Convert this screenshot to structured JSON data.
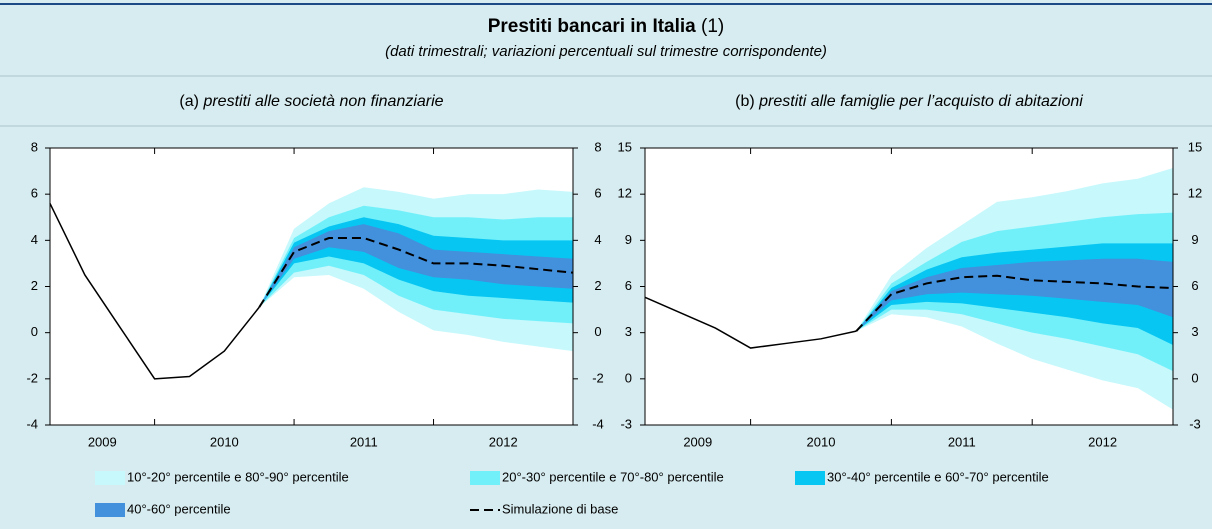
{
  "header": {
    "title": "Prestiti bancari in Italia",
    "title_note": "(1)",
    "subtitle": "(dati trimestrali; variazioni percentuali sul trimestre corrispondente)"
  },
  "legend": [
    {
      "name": "10°-20° percentile e 80°-90° percentile",
      "color": "#c6f8fc"
    },
    {
      "name": "20°-30° percentile e 70°-80° percentile",
      "color": "#72f0fa"
    },
    {
      "name": "30°-40° percentile e 60°-70° percentile",
      "color": "#08c6f2"
    },
    {
      "name": "40°-60° percentile",
      "color": "#4390dc"
    },
    {
      "name": "Simulazione di base",
      "color": "#000000",
      "dash": true
    }
  ],
  "chart_data": [
    {
      "type": "fan",
      "label": "(a)",
      "title": "prestiti alle società non finanziarie",
      "categories": [
        "2009",
        "2010",
        "2011",
        "2012"
      ],
      "x": [
        0,
        1,
        2,
        3,
        4,
        5,
        6,
        7,
        8,
        9,
        10,
        11,
        12,
        13,
        14,
        15
      ],
      "xlim": [
        0,
        15
      ],
      "xticks": [
        3,
        7,
        11
      ],
      "ylim": [
        -4,
        8
      ],
      "yticks": [
        -4,
        -2,
        0,
        2,
        4,
        6,
        8
      ],
      "history": [
        5.6,
        2.5,
        0.25,
        -2.0,
        -1.9,
        -0.8,
        1.1,
        null,
        null,
        null,
        null,
        null,
        null,
        null,
        null,
        null
      ],
      "baseline": [
        null,
        null,
        null,
        null,
        null,
        null,
        1.1,
        3.5,
        4.1,
        4.1,
        3.6,
        3.0,
        3.0,
        2.9,
        2.75,
        2.6
      ],
      "bands": [
        {
          "lower": [
            null,
            null,
            null,
            null,
            null,
            null,
            1.1,
            2.4,
            2.5,
            1.9,
            0.9,
            0.1,
            -0.1,
            -0.4,
            -0.6,
            -0.8
          ],
          "upper": [
            null,
            null,
            null,
            null,
            null,
            null,
            1.1,
            4.5,
            5.6,
            6.3,
            6.1,
            5.8,
            6.0,
            6.0,
            6.2,
            6.1
          ]
        },
        {
          "lower": [
            null,
            null,
            null,
            null,
            null,
            null,
            1.1,
            2.6,
            2.9,
            2.5,
            1.6,
            1.0,
            0.8,
            0.6,
            0.5,
            0.4
          ],
          "upper": [
            null,
            null,
            null,
            null,
            null,
            null,
            1.1,
            4.1,
            5.0,
            5.5,
            5.3,
            5.0,
            5.0,
            4.9,
            5.0,
            5.0
          ]
        },
        {
          "lower": [
            null,
            null,
            null,
            null,
            null,
            null,
            1.1,
            3.0,
            3.3,
            3.0,
            2.3,
            1.8,
            1.6,
            1.5,
            1.4,
            1.3
          ],
          "upper": [
            null,
            null,
            null,
            null,
            null,
            null,
            1.1,
            3.9,
            4.6,
            5.0,
            4.7,
            4.2,
            4.1,
            4.0,
            4.0,
            4.0
          ]
        },
        {
          "lower": [
            null,
            null,
            null,
            null,
            null,
            null,
            1.1,
            3.2,
            3.7,
            3.5,
            2.8,
            2.4,
            2.3,
            2.1,
            2.0,
            1.9
          ],
          "upper": [
            null,
            null,
            null,
            null,
            null,
            null,
            1.1,
            3.7,
            4.4,
            4.7,
            4.3,
            3.6,
            3.5,
            3.4,
            3.3,
            3.2
          ]
        }
      ]
    },
    {
      "type": "fan",
      "label": "(b)",
      "title": "prestiti alle famiglie per l’acquisto di abitazioni",
      "categories": [
        "2009",
        "2010",
        "2011",
        "2012"
      ],
      "x": [
        0,
        1,
        2,
        3,
        4,
        5,
        6,
        7,
        8,
        9,
        10,
        11,
        12,
        13,
        14,
        15
      ],
      "xlim": [
        0,
        15
      ],
      "xticks": [
        3,
        7,
        11
      ],
      "ylim": [
        -3,
        15
      ],
      "yticks": [
        -3,
        0,
        3,
        6,
        9,
        12,
        15
      ],
      "history": [
        5.3,
        4.3,
        3.3,
        2.0,
        2.3,
        2.6,
        3.1,
        null,
        null,
        null,
        null,
        null,
        null,
        null,
        null,
        null
      ],
      "baseline": [
        null,
        null,
        null,
        null,
        null,
        null,
        3.1,
        5.5,
        6.2,
        6.6,
        6.7,
        6.4,
        6.3,
        6.2,
        6.0,
        5.9
      ],
      "bands": [
        {
          "lower": [
            null,
            null,
            null,
            null,
            null,
            null,
            3.1,
            4.2,
            4.0,
            3.4,
            2.3,
            1.3,
            0.6,
            -0.1,
            -0.6,
            -2.0
          ],
          "upper": [
            null,
            null,
            null,
            null,
            null,
            null,
            3.1,
            6.7,
            8.5,
            10.0,
            11.5,
            11.8,
            12.2,
            12.7,
            13.0,
            13.7
          ]
        },
        {
          "lower": [
            null,
            null,
            null,
            null,
            null,
            null,
            3.1,
            4.5,
            4.5,
            4.2,
            3.6,
            3.0,
            2.6,
            2.1,
            1.6,
            0.5
          ],
          "upper": [
            null,
            null,
            null,
            null,
            null,
            null,
            3.1,
            6.2,
            7.6,
            8.9,
            9.6,
            9.9,
            10.2,
            10.5,
            10.7,
            10.8
          ]
        },
        {
          "lower": [
            null,
            null,
            null,
            null,
            null,
            null,
            3.1,
            4.8,
            5.0,
            4.9,
            4.6,
            4.3,
            4.0,
            3.6,
            3.3,
            2.2
          ],
          "upper": [
            null,
            null,
            null,
            null,
            null,
            null,
            3.1,
            5.9,
            7.1,
            7.9,
            8.2,
            8.4,
            8.6,
            8.8,
            8.8,
            8.8
          ]
        },
        {
          "lower": [
            null,
            null,
            null,
            null,
            null,
            null,
            3.1,
            5.1,
            5.5,
            5.6,
            5.5,
            5.4,
            5.2,
            5.0,
            4.8,
            4.0
          ],
          "upper": [
            null,
            null,
            null,
            null,
            null,
            null,
            3.1,
            5.7,
            6.6,
            7.2,
            7.4,
            7.6,
            7.7,
            7.8,
            7.8,
            7.6
          ]
        }
      ]
    }
  ]
}
